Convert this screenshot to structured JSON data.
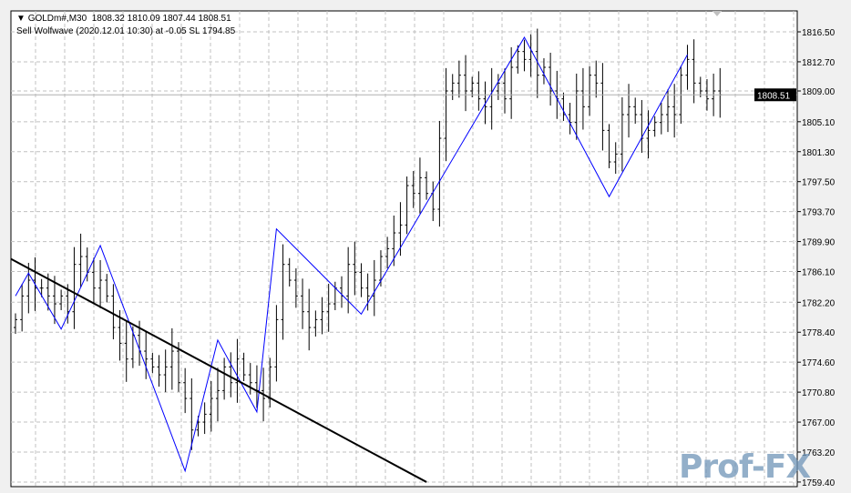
{
  "header": {
    "symbol_line": "GOLDm#,M30  1808.32 1810.09 1807.44 1808.51",
    "signal_line": "Sell Wolfwave (2020.12.01 10:30) at -0.05 SL 1794.85"
  },
  "watermark": "Prof-FX",
  "colors": {
    "bars": "#000000",
    "wolfwave": "#0000ff",
    "trendline": "#000000",
    "grid": "#c0c0c0",
    "price_label_bg": "#000000"
  },
  "chart_data": {
    "type": "ohlc-bar",
    "symbol": "GOLDm#",
    "timeframe": "M30",
    "ylim": [
      1759.4,
      1819.3
    ],
    "y_ticks": [
      "1816.50",
      "1812.70",
      "1809.00",
      "1805.10",
      "1801.30",
      "1797.50",
      "1793.70",
      "1789.90",
      "1786.10",
      "1782.20",
      "1778.40",
      "1774.60",
      "1770.80",
      "1767.00",
      "1763.20",
      "1759.40"
    ],
    "current_price": "1808.51",
    "grid": true,
    "closes": [
      1780,
      1783,
      1785,
      1784,
      1784,
      1783,
      1782,
      1783,
      1781,
      1787,
      1788,
      1786,
      1784,
      1785,
      1783,
      1779,
      1777,
      1775,
      1778,
      1776,
      1775,
      1774,
      1773,
      1774,
      1776,
      1772,
      1770,
      1766,
      1767,
      1768,
      1770,
      1771,
      1774,
      1772,
      1775,
      1773,
      1772,
      1771,
      1770,
      1774,
      1780,
      1787,
      1785,
      1783,
      1781,
      1779,
      1780,
      1781,
      1782,
      1784,
      1783,
      1787,
      1786,
      1784,
      1783,
      1785,
      1788,
      1789,
      1791,
      1792,
      1797,
      1796,
      1798,
      1796,
      1794,
      1803,
      1809,
      1810,
      1811,
      1809,
      1810,
      1808,
      1807,
      1809,
      1810,
      1808,
      1812,
      1814,
      1813,
      1814,
      1811,
      1812,
      1809,
      1808,
      1806,
      1805,
      1809,
      1807,
      1811,
      1810,
      1804,
      1800,
      1801,
      1806,
      1807,
      1806,
      1803,
      1804,
      1805,
      1806,
      1807,
      1806,
      1811,
      1813,
      1810,
      1809,
      1808,
      1809,
      1808.51
    ],
    "wolfwave_points": [
      1783.0,
      1785.9,
      1778.8,
      1789.4,
      1760.8,
      1777.4,
      1768.3,
      1791.5,
      1780.7,
      1815.8,
      1795.6,
      1813.6
    ],
    "wolfwave_bar_index": [
      0,
      2,
      7,
      13,
      26,
      31,
      37,
      40,
      53,
      78,
      91,
      103
    ],
    "trendline": {
      "from_price": 1787.7,
      "to_price": 1759.4,
      "from_bar": -0.7,
      "to_bar": 63
    }
  }
}
